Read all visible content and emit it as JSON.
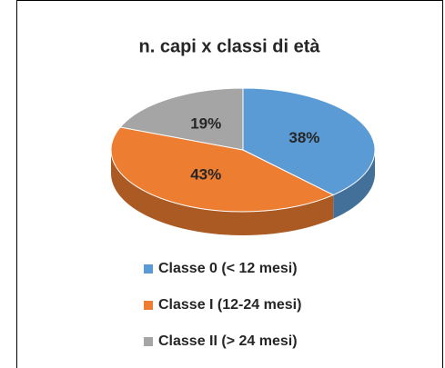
{
  "chart_data": {
    "type": "pie",
    "title": "n. capi x classi di età",
    "categories": [
      "Classe 0 (< 12 mesi)",
      "Classe I (12-24 mesi)",
      "Classe II (> 24 mesi)"
    ],
    "values": [
      38,
      43,
      19
    ],
    "value_labels": [
      "38%",
      "43%",
      "19%"
    ],
    "colors": [
      "#5b9bd5",
      "#ed7d31",
      "#a5a5a5"
    ]
  }
}
